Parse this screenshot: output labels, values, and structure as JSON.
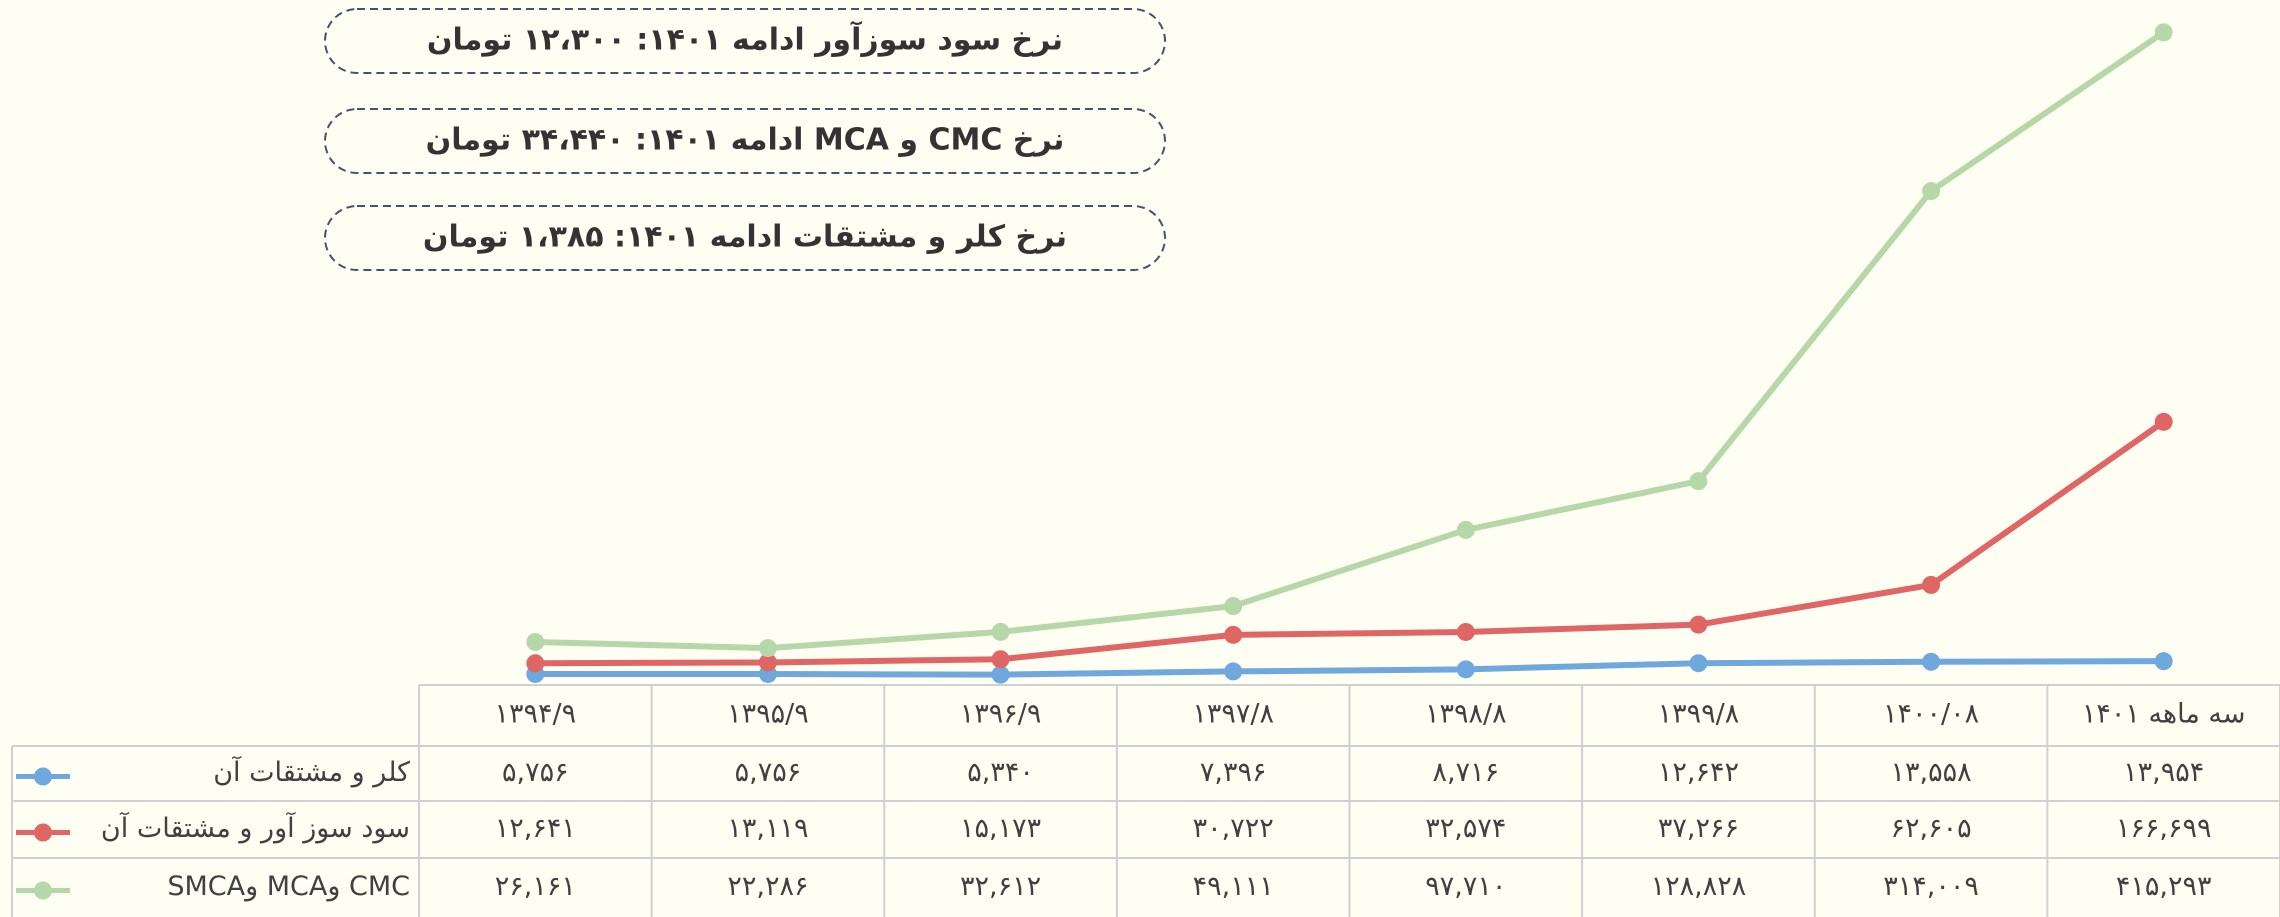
{
  "chart_data": {
    "type": "line",
    "annotations": [
      "نرخ سود سوزآور ادامه ۱۴۰۱: ۱۲،۳۰۰ تومان",
      "نرخ CMC و MCA ادامه ۱۴۰۱: ۳۴،۴۴۰ تومان",
      "نرخ کلر و مشتقات ادامه ۱۴۰۱: ۱،۳۸۵ تومان"
    ],
    "categories": [
      "۱۳۹۴/۹",
      "۱۳۹۵/۹",
      "۱۳۹۶/۹",
      "۱۳۹۷/۸",
      "۱۳۹۸/۸",
      "۱۳۹۹/۸",
      "۱۴۰۰/۰۸",
      "سه ماهه ۱۴۰۱"
    ],
    "ylim": [
      0,
      420000
    ],
    "series": [
      {
        "name": "کلر و مشتقات آن",
        "color": "#6fa8dc",
        "values": [
          5756,
          5756,
          5340,
          7396,
          8716,
          12642,
          13558,
          13954
        ],
        "value_labels": [
          "۵,۷۵۶",
          "۵,۷۵۶",
          "۵,۳۴۰",
          "۷,۳۹۶",
          "۸,۷۱۶",
          "۱۲,۶۴۲",
          "۱۳,۵۵۸",
          "۱۳,۹۵۴"
        ]
      },
      {
        "name": "سود سوز آور و مشتقات آن",
        "color": "#e06666",
        "values": [
          12641,
          13119,
          15173,
          30722,
          32574,
          37266,
          62605,
          166699
        ],
        "value_labels": [
          "۱۲,۶۴۱",
          "۱۳,۱۱۹",
          "۱۵,۱۷۳",
          "۳۰,۷۲۲",
          "۳۲,۵۷۴",
          "۳۷,۲۶۶",
          "۶۲,۶۰۵",
          "۱۶۶,۶۹۹"
        ]
      },
      {
        "name": "CMC  وMCA وSMCA",
        "color": "#b6d7a8",
        "values": [
          26161,
          22286,
          32612,
          49111,
          97710,
          128828,
          314009,
          415293
        ],
        "value_labels": [
          "۲۶,۱۶۱",
          "۲۲,۲۸۶",
          "۳۲,۶۱۲",
          "۴۹,۱۱۱",
          "۹۷,۷۱۰",
          "۱۲۸,۸۲۸",
          "۳۱۴,۰۰۹",
          "۴۱۵,۲۹۳"
        ]
      }
    ]
  }
}
